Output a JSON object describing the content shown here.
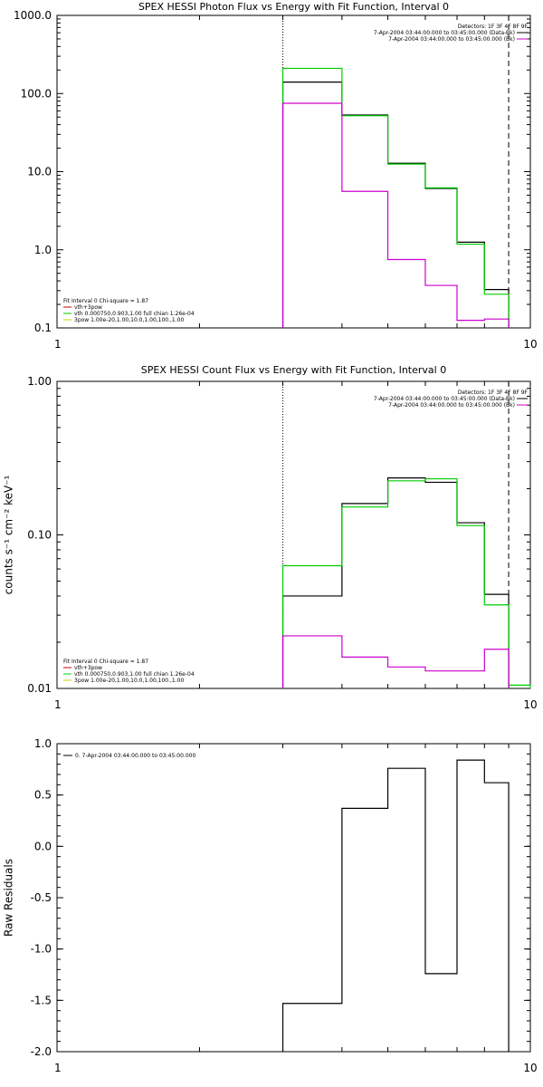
{
  "chart_data": [
    {
      "type": "line",
      "title": "SPEX HESSI Photon Flux vs Energy with Fit Function, Interval 0",
      "ylabel": "",
      "xscale": "log",
      "yscale": "log",
      "xlim": [
        1,
        10
      ],
      "ylim": [
        0.1,
        1000
      ],
      "xticks": [
        {
          "v": 1,
          "label": "1"
        },
        {
          "v": 10,
          "label": "10"
        }
      ],
      "yticks": [
        {
          "v": 0.1,
          "label": "0.1"
        },
        {
          "v": 1,
          "label": "1.0"
        },
        {
          "v": 10,
          "label": "10.0"
        },
        {
          "v": 100,
          "label": "100.0"
        },
        {
          "v": 1000,
          "label": "1000.0"
        }
      ],
      "vlines": [
        {
          "x": 3,
          "style": "dotted"
        },
        {
          "x": 9,
          "style": "dashed"
        }
      ],
      "edges": [
        3,
        4,
        5,
        6,
        7,
        8,
        9
      ],
      "series": [
        {
          "color": "#000000",
          "values": [
            140,
            53,
            12.8,
            6.1,
            1.25,
            0.31
          ]
        },
        {
          "color": "#00cc00",
          "values": [
            210,
            52,
            12.5,
            6.2,
            1.18,
            0.27
          ]
        },
        {
          "color": "#cc00cc",
          "values": [
            75,
            5.6,
            0.75,
            0.35,
            0.125,
            0.13
          ]
        }
      ],
      "legend_tr": {
        "header": "Detectors: 1F 3F 4F 8F 9F",
        "entries": [
          {
            "text": "7-Apr-2004 03:44:00.000 to 03:45:00.000 (Data-Bk)",
            "color": "#000000"
          },
          {
            "text": "7-Apr-2004 03:44:00.000 to 03:45:00.000 (Bk)",
            "color": "#cc00cc"
          }
        ]
      },
      "legend_bl": {
        "header": "Fit Interval 0   Chi-square = 1.87",
        "entries": [
          {
            "text": "vth+3pow",
            "color": "#cc0000"
          },
          {
            "text": "vth 0.000750,0.903,1.00  full chian 1.26e-04",
            "color": "#00cc00"
          },
          {
            "text": "3pow 1.00e-20,1.00,10.0,1.00,100.,1.00",
            "color": "#cccc00"
          }
        ]
      }
    },
    {
      "type": "line",
      "title": "SPEX HESSI Count Flux vs Energy with Fit Function, Interval 0",
      "ylabel": "counts s⁻¹ cm⁻² keV⁻¹",
      "xscale": "log",
      "yscale": "log",
      "xlim": [
        1,
        10
      ],
      "ylim": [
        0.01,
        1
      ],
      "xticks": [
        {
          "v": 1,
          "label": "1"
        },
        {
          "v": 10,
          "label": "10"
        }
      ],
      "yticks": [
        {
          "v": 0.01,
          "label": "0.01"
        },
        {
          "v": 0.1,
          "label": "0.10"
        },
        {
          "v": 1,
          "label": "1.00"
        }
      ],
      "vlines": [
        {
          "x": 3,
          "style": "dotted"
        },
        {
          "x": 9,
          "style": "dashed"
        }
      ],
      "edges": [
        3,
        4,
        5,
        6,
        7,
        8,
        9,
        10
      ],
      "series": [
        {
          "color": "#000000",
          "values": [
            0.04,
            0.16,
            0.235,
            0.22,
            0.12,
            0.041,
            null
          ]
        },
        {
          "color": "#00cc00",
          "values": [
            0.063,
            0.152,
            0.225,
            0.232,
            0.115,
            0.035,
            0.0105
          ]
        },
        {
          "color": "#cc00cc",
          "values": [
            0.022,
            0.016,
            0.0138,
            0.013,
            0.013,
            0.018,
            null
          ]
        }
      ],
      "legend_tr": {
        "header": "Detectors: 1F 3F 4F 8F 9F",
        "entries": [
          {
            "text": "7-Apr-2004 03:44:00.000 to 03:45:00.000 (Data-Bk)",
            "color": "#000000"
          },
          {
            "text": "7-Apr-2004 03:44:00.000 to 03:45:00.000 (Bk)",
            "color": "#cc00cc"
          }
        ]
      },
      "legend_bl": {
        "header": "Fit Interval 0   Chi-square = 1.87",
        "entries": [
          {
            "text": "vth+3pow",
            "color": "#cc0000"
          },
          {
            "text": "vth 0.000750,0.903,1.00  full chian 1.26e-04",
            "color": "#00cc00"
          },
          {
            "text": "3pow 1.00e-20,1.00,10.0,1.00,100.,1.00",
            "color": "#cccc00"
          }
        ]
      }
    },
    {
      "type": "line",
      "title": "",
      "ylabel": "Raw Residuals",
      "xscale": "log",
      "yscale": "linear",
      "xlim": [
        1,
        10
      ],
      "ylim": [
        -2.0,
        1.0
      ],
      "xticks": [
        {
          "v": 1,
          "label": "1"
        },
        {
          "v": 10,
          "label": "10"
        }
      ],
      "yticks": [
        {
          "v": -2.0,
          "label": "-2.0"
        },
        {
          "v": -1.5,
          "label": "-1.5"
        },
        {
          "v": -1.0,
          "label": "-1.0"
        },
        {
          "v": -0.5,
          "label": "-0.5"
        },
        {
          "v": 0.0,
          "label": "0.0"
        },
        {
          "v": 0.5,
          "label": "0.5"
        },
        {
          "v": 1.0,
          "label": "1.0"
        }
      ],
      "vlines": [],
      "edges": [
        3,
        4,
        5,
        6,
        7,
        8,
        9
      ],
      "series": [
        {
          "color": "#000000",
          "values": [
            -1.53,
            0.37,
            0.76,
            -1.24,
            0.84,
            0.62
          ]
        }
      ],
      "legend_tl": {
        "entries": [
          {
            "text": "0.  7-Apr-2004 03:44:00.000 to 03:45:00.000",
            "color": "#000000"
          }
        ]
      }
    }
  ]
}
